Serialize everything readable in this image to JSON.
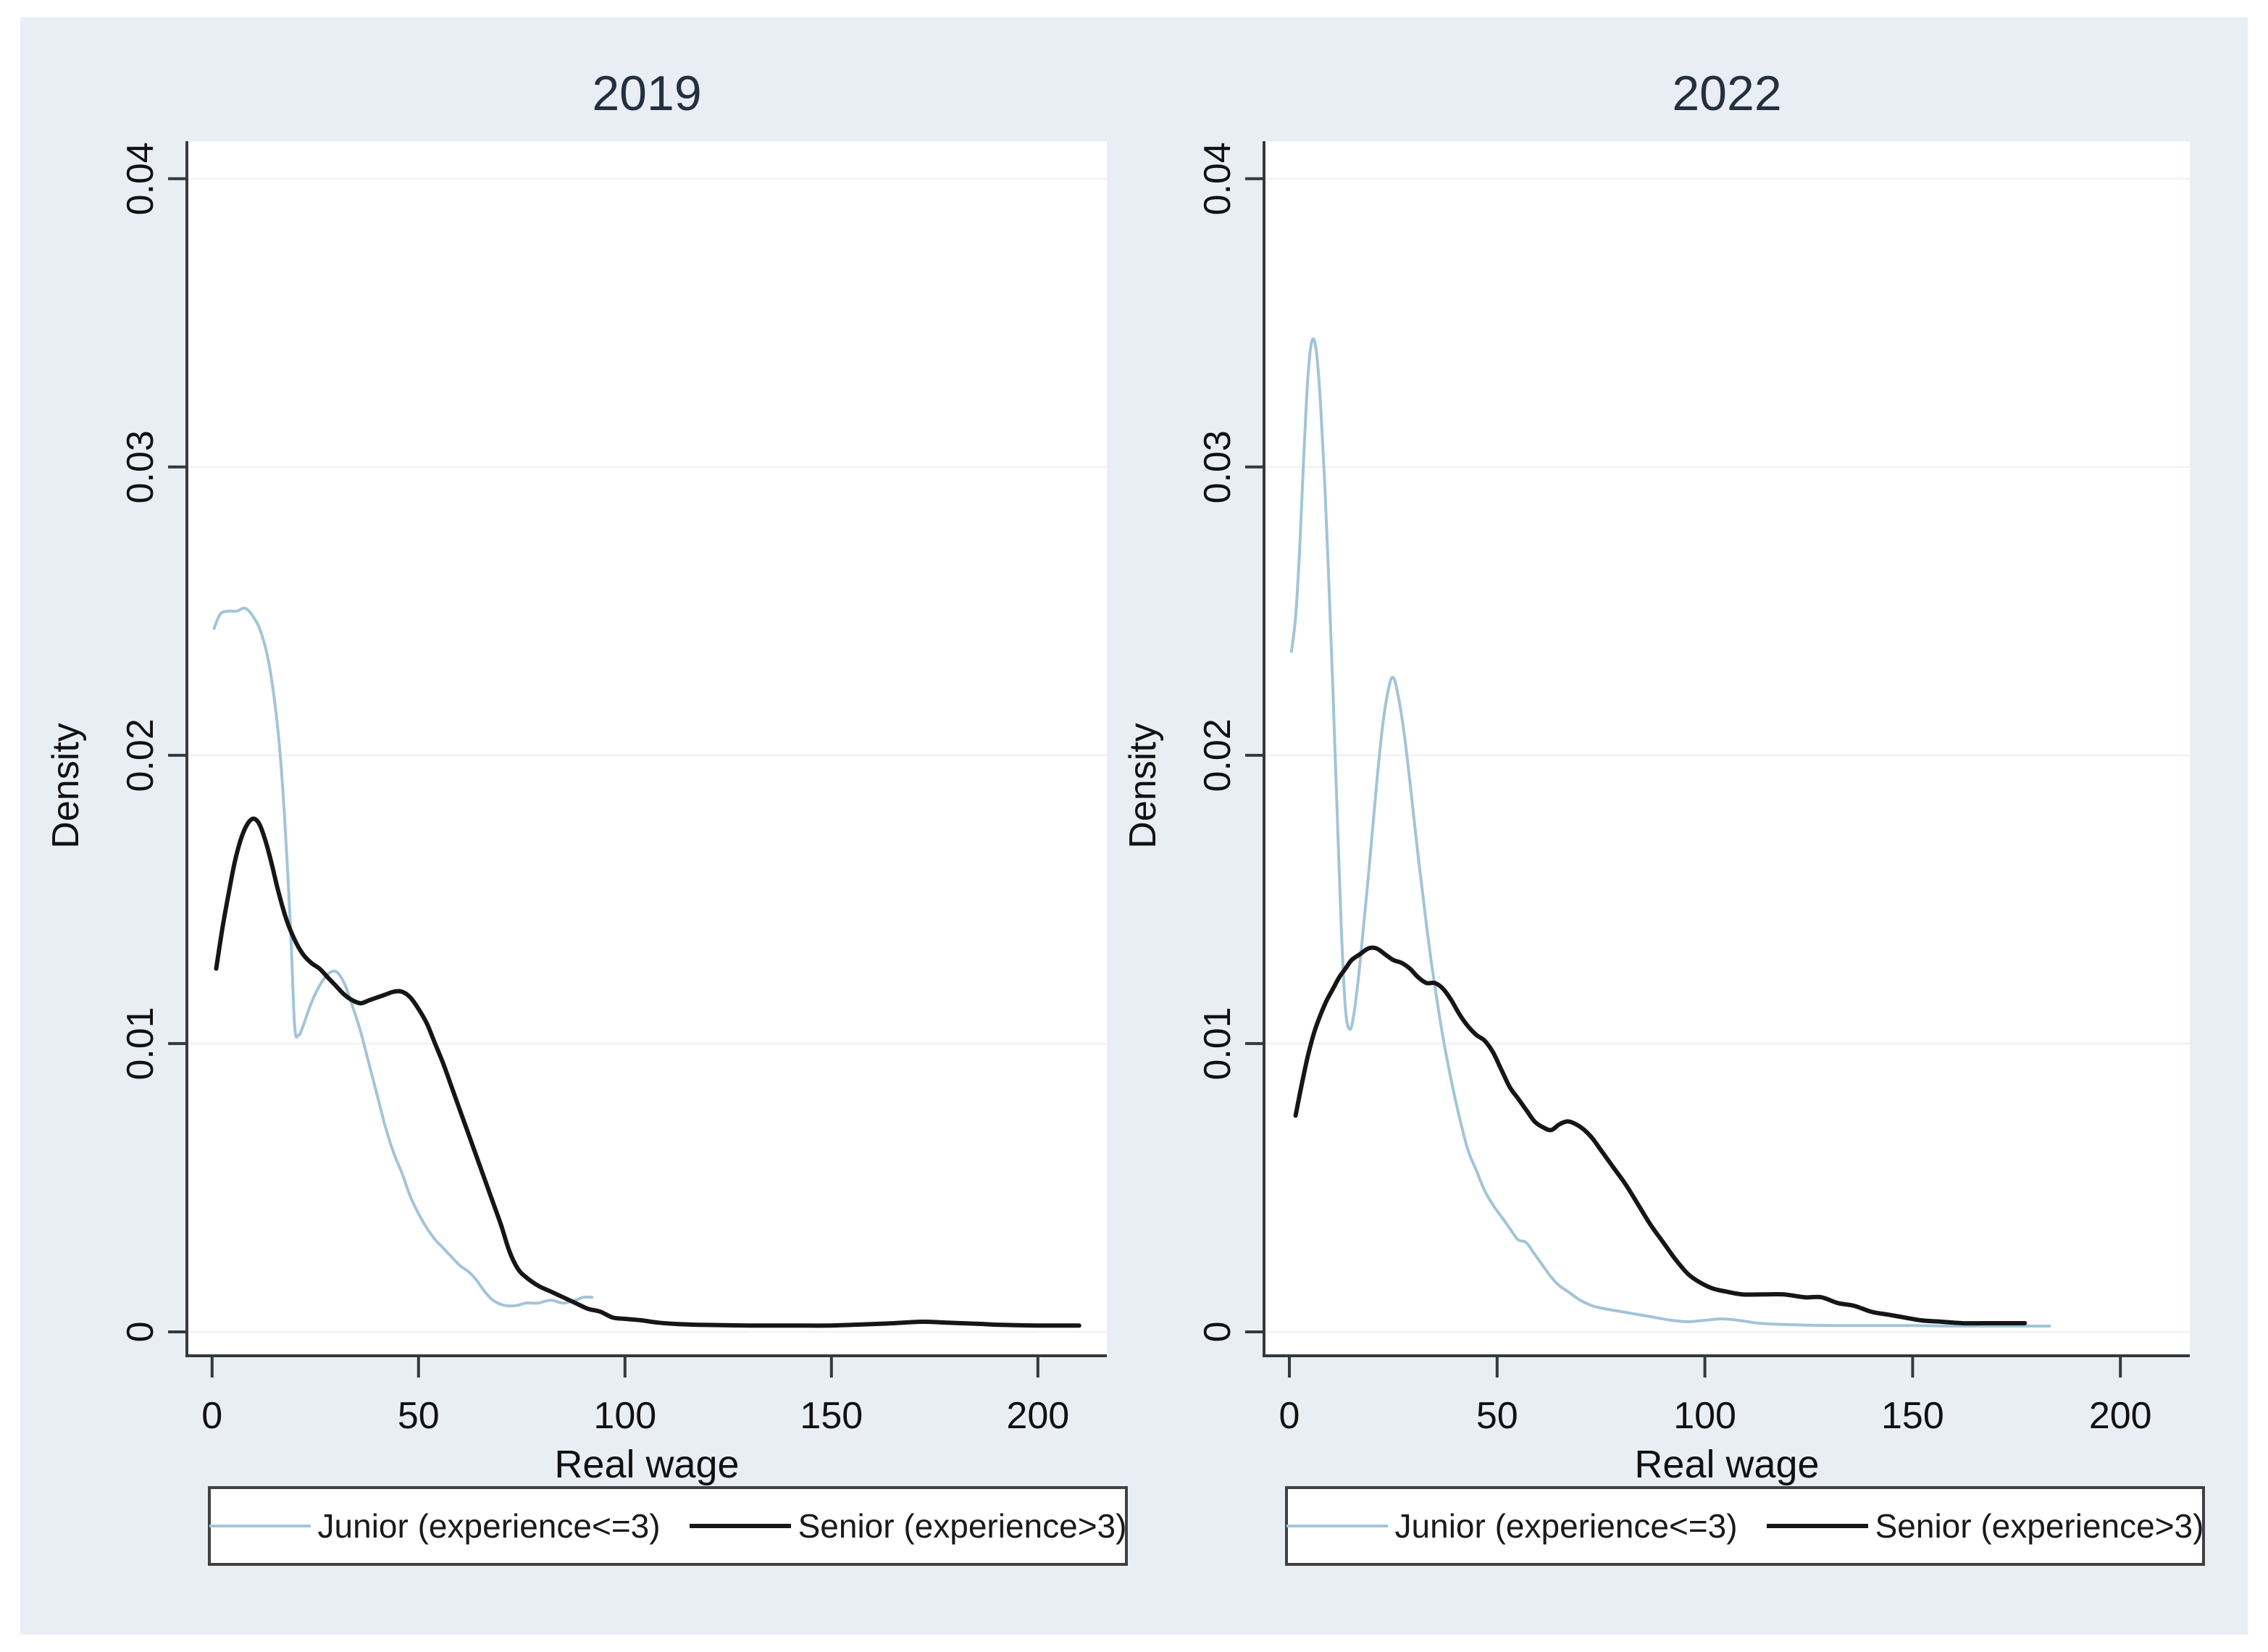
{
  "figure": {
    "background": "#e9eef5",
    "plot_background": "#ffffff",
    "axis_color": "#35383c",
    "grid_color": "#efefef",
    "title_color": "#24303f",
    "text_color": "#111111"
  },
  "legend": {
    "items": [
      {
        "label": "Junior (experience<=3)",
        "color": "#a2c4d8",
        "thickness": 4
      },
      {
        "label": "Senior (experience>3)",
        "color": "#161616",
        "thickness": 6
      }
    ]
  },
  "chart_data": [
    {
      "type": "line",
      "title": "2019",
      "xlabel": "Real wage",
      "ylabel": "Density",
      "xticks": [
        0,
        50,
        100,
        150,
        200
      ],
      "yticks": [
        0,
        0.01,
        0.02,
        0.03,
        0.04
      ],
      "xlim": [
        -6.1,
        216.7
      ],
      "ylim": [
        -0.00083,
        0.0413
      ],
      "grid": true,
      "legend_position": "bottom",
      "series": [
        {
          "name": "Junior (experience<=3)",
          "color": "#a2c4d8",
          "width": 4,
          "x": [
            0.5,
            2,
            4,
            6,
            8,
            10,
            12,
            14,
            16,
            17.5,
            19,
            20,
            21,
            22,
            24,
            26,
            28,
            30,
            32,
            34,
            36,
            38,
            40,
            42,
            44,
            46,
            48,
            50,
            52,
            54,
            56,
            58,
            60,
            62,
            64,
            66,
            68,
            70,
            72,
            74,
            76,
            79,
            82,
            85,
            88,
            90,
            92
          ],
          "y": [
            0.0244,
            0.0249,
            0.025,
            0.025,
            0.0251,
            0.0248,
            0.0242,
            0.023,
            0.0208,
            0.018,
            0.014,
            0.0106,
            0.0103,
            0.0106,
            0.0114,
            0.012,
            0.0124,
            0.0125,
            0.0121,
            0.0113,
            0.0104,
            0.0093,
            0.0082,
            0.0071,
            0.0062,
            0.0055,
            0.0047,
            0.0041,
            0.0036,
            0.0032,
            0.0029,
            0.0026,
            0.0023,
            0.0021,
            0.0018,
            0.0014,
            0.0011,
            0.00095,
            0.0009,
            0.00092,
            0.001,
            0.001,
            0.0011,
            0.001,
            0.0011,
            0.0012,
            0.0012
          ]
        },
        {
          "name": "Senior (experience>3)",
          "color": "#161616",
          "width": 6,
          "x": [
            1,
            2.5,
            4,
            5.5,
            7,
            8.5,
            10,
            11.5,
            13,
            14.5,
            16,
            18,
            20,
            22,
            24,
            26,
            28,
            30,
            32,
            34,
            36,
            38,
            40,
            42,
            44,
            46,
            48,
            50,
            52,
            54,
            56,
            58,
            60,
            62,
            64,
            66,
            68,
            70,
            72,
            74,
            76,
            79,
            82,
            85,
            88,
            91,
            94,
            97,
            100,
            104,
            108,
            113,
            120,
            130,
            140,
            150,
            158,
            165,
            172,
            178,
            185,
            192,
            200,
            210
          ],
          "y": [
            0.0126,
            0.014,
            0.0152,
            0.0163,
            0.0171,
            0.0176,
            0.0178,
            0.0176,
            0.017,
            0.0162,
            0.0153,
            0.0143,
            0.0136,
            0.0131,
            0.0128,
            0.0126,
            0.0123,
            0.012,
            0.0117,
            0.0115,
            0.0114,
            0.0115,
            0.0116,
            0.0117,
            0.0118,
            0.0118,
            0.0116,
            0.0112,
            0.0107,
            0.01,
            0.0093,
            0.0085,
            0.0077,
            0.0069,
            0.0061,
            0.0053,
            0.0045,
            0.0037,
            0.0028,
            0.0022,
            0.0019,
            0.0016,
            0.0014,
            0.0012,
            0.001,
            0.0008,
            0.0007,
            0.0005,
            0.00045,
            0.0004,
            0.00032,
            0.00027,
            0.00024,
            0.00022,
            0.00022,
            0.00022,
            0.00026,
            0.0003,
            0.00035,
            0.00032,
            0.00028,
            0.00024,
            0.00022,
            0.00022
          ]
        }
      ]
    },
    {
      "type": "line",
      "title": "2022",
      "xlabel": "Real wage",
      "ylabel": "Density",
      "xticks": [
        0,
        50,
        100,
        150,
        200
      ],
      "yticks": [
        0,
        0.01,
        0.02,
        0.03,
        0.04
      ],
      "xlim": [
        -6.1,
        216.7
      ],
      "ylim": [
        -0.00083,
        0.0413
      ],
      "grid": true,
      "legend_position": "bottom",
      "series": [
        {
          "name": "Junior (experience<=3)",
          "color": "#a2c4d8",
          "width": 4,
          "x": [
            0.5,
            1.5,
            2.5,
            3.5,
            4.5,
            5.5,
            6.5,
            7.5,
            8.5,
            9.5,
            10.5,
            11.5,
            12.5,
            13.5,
            14.5,
            15.5,
            17,
            19,
            21,
            22.5,
            24,
            25,
            26,
            27.5,
            29,
            31,
            33,
            35,
            37,
            39,
            41,
            43,
            45,
            47,
            49,
            51,
            53,
            55,
            57,
            59,
            61,
            63,
            65,
            67,
            70,
            73,
            76,
            80,
            84,
            88,
            92,
            96,
            100,
            104,
            108,
            113,
            120,
            130,
            140,
            150,
            160,
            170,
            177,
            183
          ],
          "y": [
            0.0236,
            0.0248,
            0.0272,
            0.0305,
            0.0332,
            0.0344,
            0.034,
            0.0322,
            0.0295,
            0.026,
            0.0222,
            0.018,
            0.014,
            0.0112,
            0.0105,
            0.011,
            0.0128,
            0.0158,
            0.019,
            0.0211,
            0.0224,
            0.0227,
            0.0222,
            0.0209,
            0.0191,
            0.0165,
            0.0141,
            0.012,
            0.0102,
            0.0087,
            0.0074,
            0.0063,
            0.0056,
            0.0049,
            0.0044,
            0.004,
            0.0036,
            0.0032,
            0.0031,
            0.0027,
            0.0023,
            0.0019,
            0.0016,
            0.0014,
            0.0011,
            0.0009,
            0.0008,
            0.0007,
            0.0006,
            0.0005,
            0.0004,
            0.00035,
            0.0004,
            0.00045,
            0.0004,
            0.0003,
            0.00025,
            0.00022,
            0.00022,
            0.00022,
            0.0002,
            0.0002,
            0.0002,
            0.0002
          ]
        },
        {
          "name": "Senior (experience>3)",
          "color": "#161616",
          "width": 6,
          "x": [
            1.5,
            3,
            4.5,
            6,
            7.5,
            9,
            10.5,
            12,
            13.5,
            15,
            17,
            19,
            21,
            23,
            25,
            27,
            29,
            31,
            33,
            35,
            37,
            39,
            41,
            43,
            45,
            47,
            49,
            51,
            53,
            55,
            57,
            59,
            61,
            63,
            65,
            67,
            69,
            71,
            73,
            75,
            78,
            81,
            84,
            87,
            90,
            93,
            96,
            99,
            102,
            105,
            109,
            114,
            119,
            124,
            128,
            132,
            136,
            140,
            144,
            148,
            152,
            157,
            162,
            167,
            172,
            177
          ],
          "y": [
            0.0075,
            0.0086,
            0.0096,
            0.0104,
            0.011,
            0.0115,
            0.0119,
            0.0123,
            0.0126,
            0.0129,
            0.0131,
            0.0133,
            0.0133,
            0.0131,
            0.0129,
            0.0128,
            0.0126,
            0.0123,
            0.0121,
            0.0121,
            0.0119,
            0.0115,
            0.011,
            0.0106,
            0.0103,
            0.0101,
            0.0097,
            0.0091,
            0.0085,
            0.0081,
            0.0077,
            0.0073,
            0.0071,
            0.007,
            0.0072,
            0.0073,
            0.0072,
            0.007,
            0.0067,
            0.0063,
            0.0057,
            0.0051,
            0.0044,
            0.0037,
            0.0031,
            0.0025,
            0.002,
            0.0017,
            0.0015,
            0.0014,
            0.0013,
            0.0013,
            0.0013,
            0.0012,
            0.0012,
            0.001,
            0.0009,
            0.0007,
            0.0006,
            0.0005,
            0.0004,
            0.00035,
            0.0003,
            0.0003,
            0.0003,
            0.0003
          ]
        }
      ]
    }
  ]
}
